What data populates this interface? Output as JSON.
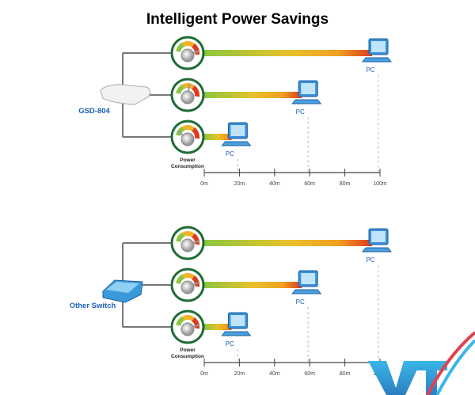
{
  "title": "Intelligent Power Savings",
  "panels": [
    {
      "device_label": "GSD-804",
      "device_type": "switch-white",
      "rows": [
        {
          "pc_label": "PC",
          "distance_m": 100,
          "gauge_level": 0.85
        },
        {
          "pc_label": "PC",
          "distance_m": 60,
          "gauge_level": 0.5
        },
        {
          "pc_label": "PC",
          "distance_m": 20,
          "gauge_level": 0.15
        }
      ],
      "gauge_caption": [
        "Power",
        "Consumption"
      ]
    },
    {
      "device_label": "Other Switch",
      "device_type": "switch-blue",
      "rows": [
        {
          "pc_label": "PC",
          "distance_m": 100,
          "gauge_level": 0.85
        },
        {
          "pc_label": "PC",
          "distance_m": 60,
          "gauge_level": 0.85
        },
        {
          "pc_label": "PC",
          "distance_m": 20,
          "gauge_level": 0.85
        }
      ],
      "gauge_caption": [
        "Power",
        "Consumption"
      ]
    }
  ],
  "axis_ticks": [
    "0m",
    "20m",
    "40m",
    "60m",
    "80m",
    "100m"
  ],
  "logo": "VTX",
  "colors": {
    "label_blue": "#1a5fb4",
    "gauge_ring": "#1e6b34",
    "bar_start": "#8cc63f",
    "bar_mid": "#f0b429",
    "bar_end": "#e03a1e",
    "pc_blue": "#4a9fe0"
  }
}
